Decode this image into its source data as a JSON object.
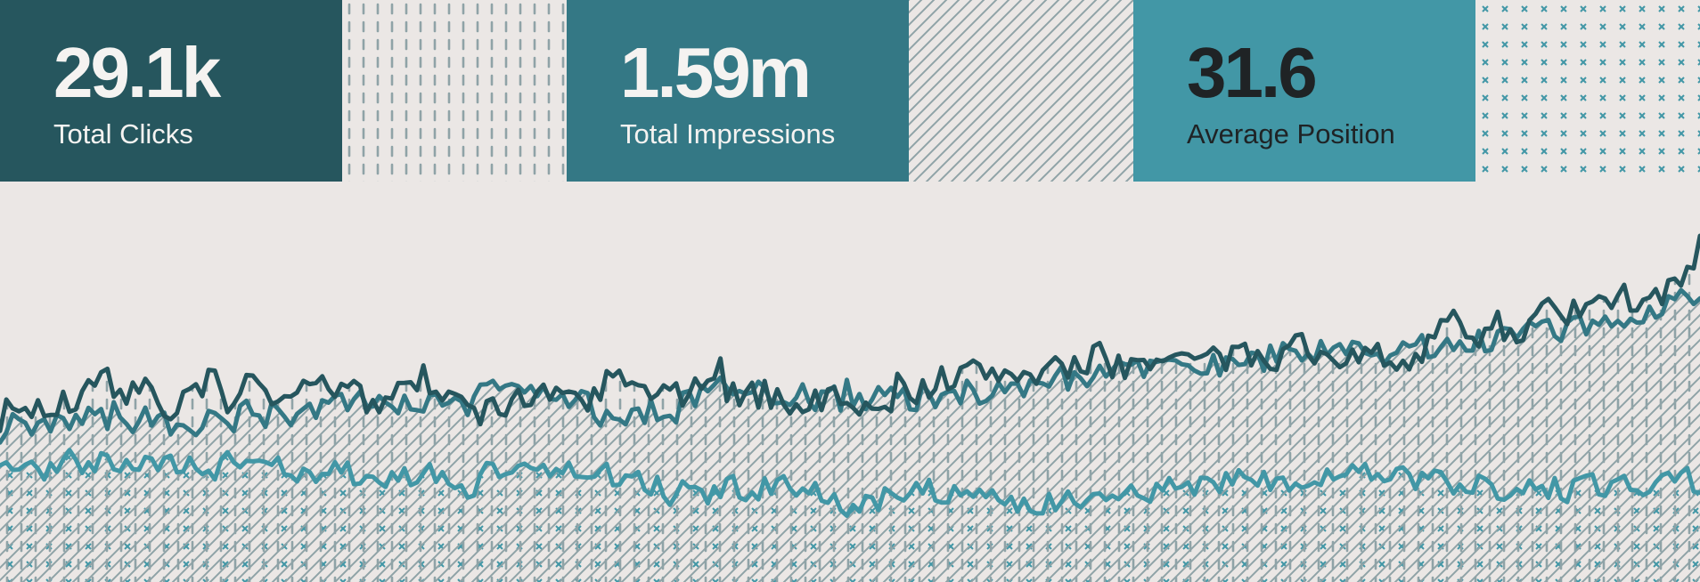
{
  "colors": {
    "background": "#ebe7e5",
    "dark_teal": "#26565e",
    "mid_teal": "#347885",
    "light_teal": "#4297a6",
    "pattern_gray": "#8fa3a7",
    "text_light": "#f5f3f1",
    "text_dark": "#1f2325"
  },
  "stats": [
    {
      "value": "29.1k",
      "label": "Total Clicks"
    },
    {
      "value": "1.59m",
      "label": "Total Impressions"
    },
    {
      "value": "31.6",
      "label": "Average Position"
    }
  ],
  "patterns": [
    {
      "kind": "dashes"
    },
    {
      "kind": "diagonal-lines"
    },
    {
      "kind": "crosses"
    }
  ],
  "chart_data": {
    "type": "area",
    "grid": false,
    "series": [
      {
        "color": "#26565e",
        "fill_pattern": "dashes",
        "anchors": [
          [
            0,
            0.42
          ],
          [
            0.03,
            0.44
          ],
          [
            0.05,
            0.46
          ],
          [
            0.07,
            0.5
          ],
          [
            0.1,
            0.44
          ],
          [
            0.13,
            0.46
          ],
          [
            0.15,
            0.48
          ],
          [
            0.17,
            0.45
          ],
          [
            0.2,
            0.47
          ],
          [
            0.22,
            0.43
          ],
          [
            0.24,
            0.54
          ],
          [
            0.27,
            0.43
          ],
          [
            0.3,
            0.43
          ],
          [
            0.33,
            0.45
          ],
          [
            0.36,
            0.48
          ],
          [
            0.4,
            0.47
          ],
          [
            0.43,
            0.48
          ],
          [
            0.46,
            0.46
          ],
          [
            0.49,
            0.45
          ],
          [
            0.52,
            0.47
          ],
          [
            0.55,
            0.5
          ],
          [
            0.58,
            0.52
          ],
          [
            0.61,
            0.53
          ],
          [
            0.64,
            0.55
          ],
          [
            0.67,
            0.55
          ],
          [
            0.7,
            0.54
          ],
          [
            0.73,
            0.56
          ],
          [
            0.76,
            0.57
          ],
          [
            0.79,
            0.56
          ],
          [
            0.82,
            0.56
          ],
          [
            0.84,
            0.6
          ],
          [
            0.86,
            0.62
          ],
          [
            0.88,
            0.64
          ],
          [
            0.9,
            0.64
          ],
          [
            0.92,
            0.66
          ],
          [
            0.94,
            0.68
          ],
          [
            0.96,
            0.7
          ],
          [
            0.97,
            0.72
          ],
          [
            0.98,
            0.73
          ],
          [
            0.99,
            0.72
          ],
          [
            1,
            0.86
          ]
        ],
        "amplitude": 0.055,
        "seed": 7
      },
      {
        "color": "#347885",
        "fill_pattern": "diagonal-lines",
        "anchors": [
          [
            0,
            0.38
          ],
          [
            0.05,
            0.42
          ],
          [
            0.1,
            0.4
          ],
          [
            0.15,
            0.42
          ],
          [
            0.2,
            0.44
          ],
          [
            0.26,
            0.44
          ],
          [
            0.3,
            0.47
          ],
          [
            0.33,
            0.47
          ],
          [
            0.36,
            0.4
          ],
          [
            0.4,
            0.45
          ],
          [
            0.44,
            0.49
          ],
          [
            0.48,
            0.46
          ],
          [
            0.52,
            0.45
          ],
          [
            0.55,
            0.47
          ],
          [
            0.6,
            0.5
          ],
          [
            0.64,
            0.51
          ],
          [
            0.68,
            0.53
          ],
          [
            0.72,
            0.54
          ],
          [
            0.76,
            0.57
          ],
          [
            0.8,
            0.57
          ],
          [
            0.84,
            0.58
          ],
          [
            0.88,
            0.6
          ],
          [
            0.92,
            0.64
          ],
          [
            0.96,
            0.67
          ],
          [
            1,
            0.7
          ]
        ],
        "amplitude": 0.045,
        "seed": 19
      },
      {
        "color": "#4297a6",
        "fill_pattern": "crosses",
        "anchors": [
          [
            0,
            0.28
          ],
          [
            0.05,
            0.29
          ],
          [
            0.1,
            0.28
          ],
          [
            0.15,
            0.3
          ],
          [
            0.2,
            0.27
          ],
          [
            0.25,
            0.27
          ],
          [
            0.27,
            0.22
          ],
          [
            0.3,
            0.3
          ],
          [
            0.35,
            0.28
          ],
          [
            0.4,
            0.22
          ],
          [
            0.45,
            0.24
          ],
          [
            0.5,
            0.2
          ],
          [
            0.55,
            0.23
          ],
          [
            0.6,
            0.2
          ],
          [
            0.65,
            0.2
          ],
          [
            0.7,
            0.25
          ],
          [
            0.75,
            0.25
          ],
          [
            0.8,
            0.27
          ],
          [
            0.85,
            0.25
          ],
          [
            0.9,
            0.23
          ],
          [
            0.95,
            0.24
          ],
          [
            1,
            0.25
          ]
        ],
        "amplitude": 0.04,
        "seed": 31
      }
    ]
  }
}
